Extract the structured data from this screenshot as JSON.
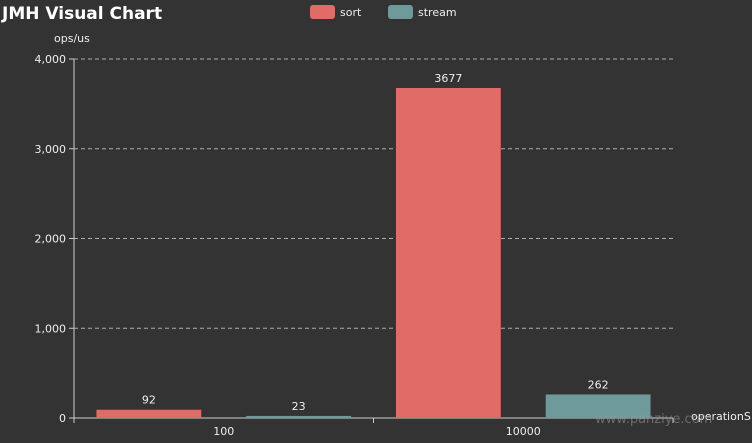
{
  "chart_data": {
    "type": "bar",
    "title": "JMH Visual Chart",
    "ylabel": "ops/us",
    "xlabel": "operationS",
    "categories": [
      "100",
      "10000"
    ],
    "series": [
      {
        "name": "sort",
        "color": "#e06b67",
        "values": [
          92,
          3677
        ]
      },
      {
        "name": "stream",
        "color": "#6e9a9b",
        "values": [
          23,
          262
        ]
      }
    ],
    "ylim": [
      0,
      4000
    ],
    "yticks": [
      0,
      1000,
      2000,
      3000,
      4000
    ],
    "ytick_labels": [
      "0",
      "1,000",
      "2,000",
      "3,000",
      "4,000"
    ],
    "grid": true,
    "legend_position": "top-center",
    "colors": {
      "background": "#333333",
      "axis": "#cccccc",
      "grid": "#cccccc"
    }
  },
  "watermark": "www.panziye.com"
}
